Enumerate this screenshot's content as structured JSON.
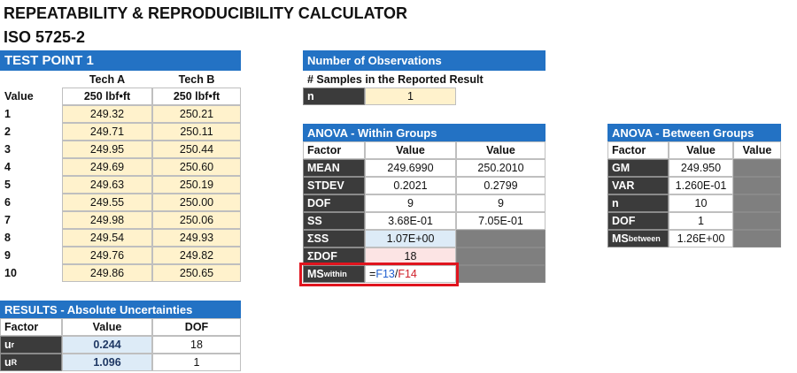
{
  "title": "REPEATABILITY & REPRODUCIBILITY CALCULATOR",
  "subtitle": "ISO 5725-2",
  "test_point": {
    "title": "TEST POINT 1",
    "columns": [
      "Tech A",
      "Tech B"
    ],
    "row_label": "Value",
    "nominal": [
      "250 lbf•ft",
      "250 lbf•ft"
    ],
    "rows": [
      [
        "1",
        "249.32",
        "250.21"
      ],
      [
        "2",
        "249.71",
        "250.11"
      ],
      [
        "3",
        "249.95",
        "250.44"
      ],
      [
        "4",
        "249.69",
        "250.60"
      ],
      [
        "5",
        "249.63",
        "250.19"
      ],
      [
        "6",
        "249.55",
        "250.00"
      ],
      [
        "7",
        "249.98",
        "250.06"
      ],
      [
        "8",
        "249.54",
        "249.93"
      ],
      [
        "9",
        "249.76",
        "249.82"
      ],
      [
        "10",
        "249.86",
        "250.65"
      ]
    ]
  },
  "observations": {
    "title": "Number of Observations",
    "label": "# Samples in the Reported Result",
    "factor": "n",
    "value": "1"
  },
  "anova_within": {
    "title": "ANOVA - Within Groups",
    "columns": [
      "Factor",
      "Value",
      "Value"
    ],
    "rows": [
      {
        "factor": [
          "MEAN"
        ],
        "values": [
          "249.6990",
          "250.2010"
        ]
      },
      {
        "factor": [
          "STDEV"
        ],
        "values": [
          "0.2021",
          "0.2799"
        ]
      },
      {
        "factor": [
          "DOF"
        ],
        "values": [
          "9",
          "9"
        ]
      },
      {
        "factor": [
          "SS"
        ],
        "values": [
          "3.68E-01",
          "7.05E-01"
        ]
      },
      {
        "factor": [
          "ΣSS"
        ],
        "values": [
          "1.07E+00"
        ]
      },
      {
        "factor": [
          "ΣDOF"
        ],
        "values": [
          "18"
        ]
      },
      {
        "factor": [
          "MS",
          "within"
        ],
        "formula": [
          "=",
          "F13",
          "/",
          "F14"
        ]
      }
    ]
  },
  "anova_between": {
    "title": "ANOVA - Between Groups",
    "columns": [
      "Factor",
      "Value",
      "Value"
    ],
    "rows": [
      {
        "factor": [
          "GM"
        ],
        "values": [
          "249.950"
        ]
      },
      {
        "factor": [
          "VAR"
        ],
        "values": [
          "1.260E-01"
        ]
      },
      {
        "factor": [
          "n"
        ],
        "values": [
          "10"
        ]
      },
      {
        "factor": [
          "DOF"
        ],
        "values": [
          "1"
        ]
      },
      {
        "factor": [
          "MS",
          "between"
        ],
        "values": [
          "1.26E+00"
        ]
      }
    ]
  },
  "results": {
    "title": "RESULTS - Absolute Uncertainties",
    "columns": [
      "Factor",
      "Value",
      "DOF"
    ],
    "rows": [
      {
        "factor": [
          "u",
          "r"
        ],
        "values": [
          "0.244",
          "18"
        ]
      },
      {
        "factor": [
          "u",
          "R"
        ],
        "values": [
          "1.096",
          "1"
        ]
      }
    ]
  }
}
